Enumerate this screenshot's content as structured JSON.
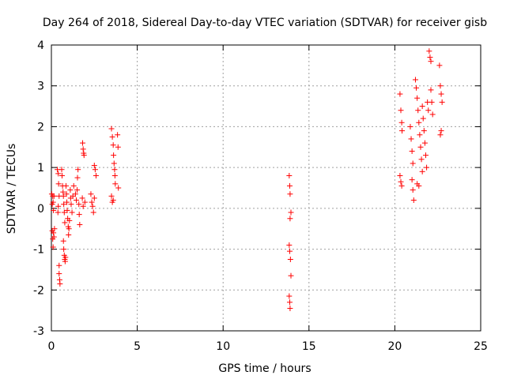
{
  "chart_data": {
    "type": "scatter",
    "title": "Day 264 of 2018, Sidereal Day-to-day VTEC variation (SDTVAR) for receiver gisb",
    "xlabel": "GPS time / hours",
    "ylabel": "SDTVAR / TECUs",
    "xlim": [
      0,
      25
    ],
    "ylim": [
      -3,
      4
    ],
    "xticks": [
      "0",
      "5",
      "10",
      "15",
      "20",
      "25"
    ],
    "yticks": [
      "-3",
      "-2",
      "-1",
      "0",
      "1",
      "2",
      "3",
      "4"
    ],
    "xtick_values": [
      0,
      5,
      10,
      15,
      20,
      25
    ],
    "ytick_values": [
      -3,
      -2,
      -1,
      0,
      1,
      2,
      3,
      4
    ],
    "grid": true,
    "legend": "none",
    "marker": "+",
    "marker_color": "#ff0000",
    "series": [
      {
        "name": "SDTVAR",
        "points": [
          [
            0.02,
            0.35
          ],
          [
            0.05,
            0.1
          ],
          [
            0.08,
            0.3
          ],
          [
            0.1,
            0.15
          ],
          [
            0.12,
            -0.05
          ],
          [
            0.15,
            0.3
          ],
          [
            0.05,
            -0.55
          ],
          [
            0.08,
            -0.75
          ],
          [
            0.1,
            -0.95
          ],
          [
            0.12,
            -0.6
          ],
          [
            0.15,
            -0.7
          ],
          [
            0.18,
            -0.5
          ],
          [
            0.35,
            0.95
          ],
          [
            0.4,
            0.85
          ],
          [
            0.42,
            0.6
          ],
          [
            0.45,
            0.3
          ],
          [
            0.38,
            -0.1
          ],
          [
            0.4,
            0.05
          ],
          [
            0.45,
            -1.6
          ],
          [
            0.48,
            -1.75
          ],
          [
            0.5,
            -1.85
          ],
          [
            0.45,
            -1.4
          ],
          [
            0.6,
            0.95
          ],
          [
            0.62,
            0.8
          ],
          [
            0.65,
            0.55
          ],
          [
            0.68,
            0.4
          ],
          [
            0.7,
            0.3
          ],
          [
            0.72,
            0.1
          ],
          [
            0.75,
            -0.1
          ],
          [
            0.78,
            -0.35
          ],
          [
            0.7,
            -0.8
          ],
          [
            0.72,
            -1.0
          ],
          [
            0.75,
            -1.15
          ],
          [
            0.78,
            -1.25
          ],
          [
            0.8,
            -1.3
          ],
          [
            0.82,
            -1.2
          ],
          [
            0.85,
            0.55
          ],
          [
            0.88,
            0.35
          ],
          [
            0.9,
            0.15
          ],
          [
            0.92,
            -0.05
          ],
          [
            0.95,
            -0.25
          ],
          [
            0.98,
            -0.45
          ],
          [
            1.0,
            -0.65
          ],
          [
            1.02,
            -0.5
          ],
          [
            1.05,
            -0.3
          ],
          [
            1.1,
            0.45
          ],
          [
            1.12,
            0.25
          ],
          [
            1.15,
            0.1
          ],
          [
            1.2,
            -0.1
          ],
          [
            1.25,
            0.3
          ],
          [
            1.3,
            0.55
          ],
          [
            1.4,
            0.35
          ],
          [
            1.45,
            0.2
          ],
          [
            1.5,
            0.45
          ],
          [
            1.52,
            0.75
          ],
          [
            1.55,
            0.95
          ],
          [
            1.6,
            0.1
          ],
          [
            1.62,
            -0.15
          ],
          [
            1.65,
            -0.4
          ],
          [
            1.8,
            0.25
          ],
          [
            1.85,
            0.05
          ],
          [
            1.82,
            1.6
          ],
          [
            1.85,
            1.45
          ],
          [
            1.88,
            1.35
          ],
          [
            1.9,
            1.3
          ],
          [
            1.95,
            0.15
          ],
          [
            2.3,
            0.35
          ],
          [
            2.35,
            0.15
          ],
          [
            2.4,
            0.05
          ],
          [
            2.45,
            -0.1
          ],
          [
            2.5,
            0.25
          ],
          [
            2.5,
            1.05
          ],
          [
            2.55,
            0.95
          ],
          [
            2.6,
            0.8
          ],
          [
            3.5,
            1.95
          ],
          [
            3.55,
            1.75
          ],
          [
            3.6,
            1.55
          ],
          [
            3.62,
            1.3
          ],
          [
            3.65,
            1.1
          ],
          [
            3.68,
            0.95
          ],
          [
            3.7,
            0.8
          ],
          [
            3.72,
            0.6
          ],
          [
            3.5,
            0.3
          ],
          [
            3.55,
            0.15
          ],
          [
            3.6,
            0.2
          ],
          [
            3.85,
            1.8
          ],
          [
            3.88,
            1.5
          ],
          [
            3.9,
            0.5
          ],
          [
            13.85,
            0.8
          ],
          [
            13.88,
            0.55
          ],
          [
            13.9,
            0.35
          ],
          [
            13.95,
            -0.1
          ],
          [
            13.9,
            -0.25
          ],
          [
            13.85,
            -0.9
          ],
          [
            13.88,
            -1.05
          ],
          [
            13.92,
            -1.25
          ],
          [
            13.95,
            -1.65
          ],
          [
            13.85,
            -2.15
          ],
          [
            13.88,
            -2.3
          ],
          [
            13.9,
            -2.45
          ],
          [
            20.3,
            2.8
          ],
          [
            20.35,
            2.4
          ],
          [
            20.4,
            2.1
          ],
          [
            20.42,
            1.9
          ],
          [
            20.3,
            0.8
          ],
          [
            20.35,
            0.65
          ],
          [
            20.4,
            0.55
          ],
          [
            20.9,
            2.0
          ],
          [
            20.95,
            1.7
          ],
          [
            21.0,
            1.4
          ],
          [
            21.05,
            1.1
          ],
          [
            21.0,
            0.7
          ],
          [
            21.05,
            0.45
          ],
          [
            21.1,
            0.2
          ],
          [
            21.2,
            3.15
          ],
          [
            21.25,
            2.95
          ],
          [
            21.3,
            2.7
          ],
          [
            21.35,
            2.4
          ],
          [
            21.4,
            2.1
          ],
          [
            21.45,
            1.8
          ],
          [
            21.5,
            1.5
          ],
          [
            21.55,
            1.2
          ],
          [
            21.6,
            0.9
          ],
          [
            21.3,
            0.6
          ],
          [
            21.4,
            0.55
          ],
          [
            21.6,
            2.5
          ],
          [
            21.65,
            2.2
          ],
          [
            21.7,
            1.9
          ],
          [
            21.75,
            1.6
          ],
          [
            21.8,
            1.3
          ],
          [
            21.85,
            1.0
          ],
          [
            21.9,
            2.6
          ],
          [
            21.95,
            2.4
          ],
          [
            22.0,
            3.85
          ],
          [
            22.05,
            3.7
          ],
          [
            22.1,
            3.6
          ],
          [
            22.1,
            2.9
          ],
          [
            22.15,
            2.6
          ],
          [
            22.2,
            2.3
          ],
          [
            22.6,
            3.5
          ],
          [
            22.65,
            3.0
          ],
          [
            22.7,
            2.8
          ],
          [
            22.75,
            2.6
          ],
          [
            22.7,
            1.9
          ],
          [
            22.65,
            1.8
          ]
        ]
      }
    ]
  }
}
